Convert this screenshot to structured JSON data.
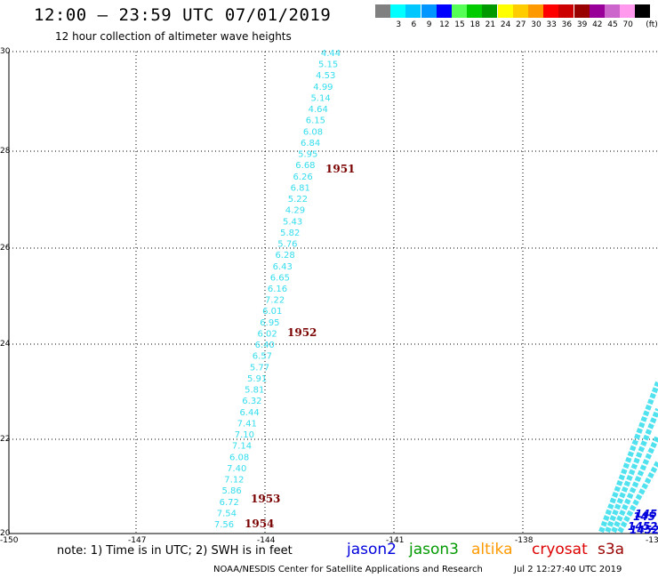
{
  "header": {
    "title": "12:00 — 23:59 UTC 07/01/2019",
    "subtitle": "12 hour collection of altimeter wave heights"
  },
  "legend": {
    "unit": "(ft)",
    "bins": [
      {
        "label": "",
        "color": "#808080"
      },
      {
        "label": "3",
        "color": "#00ffff"
      },
      {
        "label": "6",
        "color": "#00c8ff"
      },
      {
        "label": "9",
        "color": "#0096ff"
      },
      {
        "label": "12",
        "color": "#0000ff"
      },
      {
        "label": "15",
        "color": "#55ff55"
      },
      {
        "label": "18",
        "color": "#00cc00"
      },
      {
        "label": "21",
        "color": "#009900"
      },
      {
        "label": "24",
        "color": "#ffff00"
      },
      {
        "label": "27",
        "color": "#ffcc00"
      },
      {
        "label": "30",
        "color": "#ff9900"
      },
      {
        "label": "33",
        "color": "#ff0000"
      },
      {
        "label": "36",
        "color": "#cc0000"
      },
      {
        "label": "39",
        "color": "#990000"
      },
      {
        "label": "42",
        "color": "#990099"
      },
      {
        "label": "45",
        "color": "#cc66cc"
      },
      {
        "label": "70",
        "color": "#ff99ee"
      },
      {
        "label": "",
        "color": "#000000"
      }
    ]
  },
  "axes": {
    "lat_labels": [
      "30",
      "28",
      "26",
      "24",
      "22",
      "20"
    ],
    "lon_labels": [
      "-150",
      "-147",
      "-144",
      "-141",
      "-138",
      "-13"
    ]
  },
  "track": {
    "color": "#33ddee",
    "swh": [
      "4.44",
      "5.15",
      "4.53",
      "4.99",
      "5.14",
      "4.64",
      "6.15",
      "6.08",
      "6.84",
      "5.95",
      "6.68",
      "6.26",
      "6.81",
      "5.22",
      "4.29",
      "5.43",
      "5.82",
      "5.76",
      "6.28",
      "6.43",
      "6.65",
      "6.16",
      "7.22",
      "6.01",
      "6.95",
      "6.02",
      "6.40",
      "6.57",
      "5.77",
      "5.91",
      "5.81",
      "6.32",
      "6.44",
      "7.41",
      "7.10",
      "7.14",
      "6.08",
      "7.40",
      "7.12",
      "5.86",
      "6.72",
      "7.54",
      "7.56"
    ],
    "time_labels": [
      {
        "text": "1951",
        "color": "#7a0000"
      },
      {
        "text": "1952",
        "color": "#7a0000"
      },
      {
        "text": "1953",
        "color": "#7a0000"
      },
      {
        "text": "1954",
        "color": "#7a0000"
      }
    ]
  },
  "edge_track": {
    "labels": [
      "145",
      "145",
      "1452",
      "1452"
    ],
    "color": "#0000dd",
    "swh_color": "#33ddee"
  },
  "footer": {
    "note": "note: 1) Time is in UTC; 2) SWH is in feet",
    "satellites": [
      {
        "name": "jason2",
        "color": "#0000dd"
      },
      {
        "name": "jason3",
        "color": "#009900"
      },
      {
        "name": "altika",
        "color": "#ff9900"
      },
      {
        "name": "cryosat",
        "color": "#dd0000"
      },
      {
        "name": "s3a",
        "color": "#990000"
      }
    ],
    "credit": "NOAA/NESDIS Center for Satellite Applications and Research",
    "timestamp": "Jul  2 12:27:40 UTC 2019"
  }
}
